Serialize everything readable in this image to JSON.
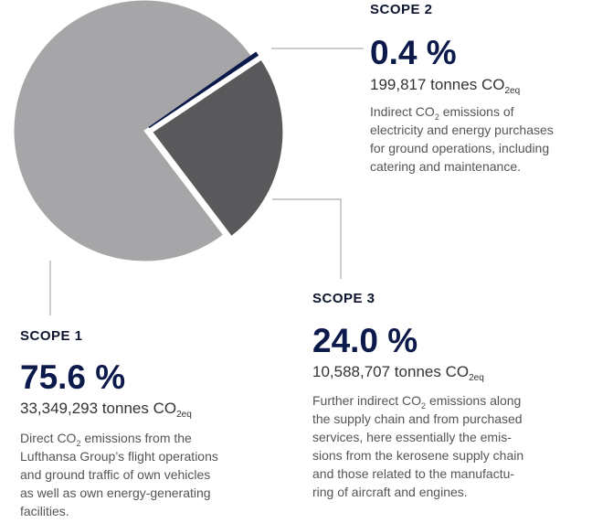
{
  "chart_data": {
    "type": "pie",
    "categories": [
      "SCOPE 1",
      "SCOPE 2",
      "SCOPE 3"
    ],
    "values": [
      75.6,
      0.4,
      24.0
    ],
    "value_labels": [
      "75.6 %",
      "0.4 %",
      "24.0 %"
    ],
    "colors": [
      "#a6a6a9",
      "#0c1a4b",
      "#59595b"
    ],
    "tonnes": [
      [
        "33,349,293 tonnes CO",
        "2eq"
      ],
      [
        "199,817 tonnes CO",
        "2eq"
      ],
      [
        "10,588,707 tonnes CO",
        "2eq"
      ]
    ],
    "descriptions": [
      [
        [
          "Direct CO",
          "2",
          " emissions from the"
        ],
        [
          "Lufthansa Group’s flight operations"
        ],
        [
          "and ground traffic of own vehicles"
        ],
        [
          "as well as own energy-generating"
        ],
        [
          "facilities."
        ]
      ],
      [
        [
          "Indirect CO",
          "2",
          " emissions of"
        ],
        [
          "electricity and energy purchases"
        ],
        [
          "for ground operations, including"
        ],
        [
          "catering and maintenance."
        ]
      ],
      [
        [
          "Further indirect CO",
          "2",
          " emissions along"
        ],
        [
          "the supply chain and from purchased"
        ],
        [
          "services, here essentially the emis-"
        ],
        [
          "sions from the kerosene supply chain"
        ],
        [
          "and those related to the manufactu-"
        ],
        [
          "ring of aircraft and engines."
        ]
      ]
    ]
  }
}
